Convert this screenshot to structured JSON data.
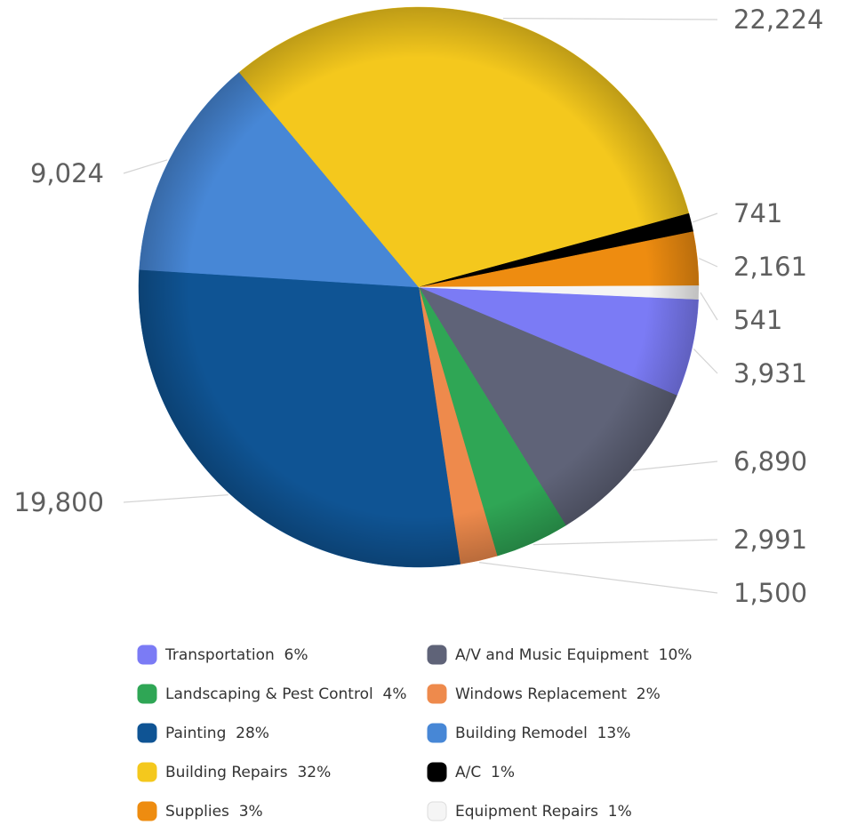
{
  "chart_data": {
    "type": "pie",
    "title": "",
    "slices": [
      {
        "name": "Transportation",
        "value": 3931,
        "percent_label": "6%",
        "color": "#7b7bf5"
      },
      {
        "name": "A/V and Music Equipment",
        "value": 6890,
        "percent_label": "10%",
        "color": "#5f6378"
      },
      {
        "name": "Landscaping & Pest Control",
        "value": 2991,
        "percent_label": "4%",
        "color": "#2fa655"
      },
      {
        "name": "Windows Replacement",
        "value": 1500,
        "percent_label": "2%",
        "color": "#ee8a4c"
      },
      {
        "name": "Painting",
        "value": 19800,
        "percent_label": "28%",
        "color": "#0f5494"
      },
      {
        "name": "Building Remodel",
        "value": 9024,
        "percent_label": "13%",
        "color": "#4787d6"
      },
      {
        "name": "Building Repairs",
        "value": 22224,
        "percent_label": "32%",
        "color": "#f4c81d"
      },
      {
        "name": "A/C",
        "value": 741,
        "percent_label": "1%",
        "color": "#000000"
      },
      {
        "name": "Supplies",
        "value": 2161,
        "percent_label": "3%",
        "color": "#ee8c10"
      },
      {
        "name": "Equipment Repairs",
        "value": 541,
        "percent_label": "1%",
        "color": "#f5f5f5"
      }
    ],
    "value_labels": {
      "Transportation": "3,931",
      "A/V and Music Equipment": "6,890",
      "Landscaping & Pest Control": "2,991",
      "Windows Replacement": "1,500",
      "Painting": "19,800",
      "Building Remodel": "9,024",
      "Building Repairs": "22,224",
      "A/C": "741",
      "Supplies": "2,161",
      "Equipment Repairs": "541"
    },
    "legend_position": "bottom",
    "legend_order": [
      "Transportation",
      "A/V and Music Equipment",
      "Landscaping & Pest Control",
      "Windows Replacement",
      "Painting",
      "Building Remodel",
      "Building Repairs",
      "A/C",
      "Supplies",
      "Equipment Repairs"
    ]
  }
}
